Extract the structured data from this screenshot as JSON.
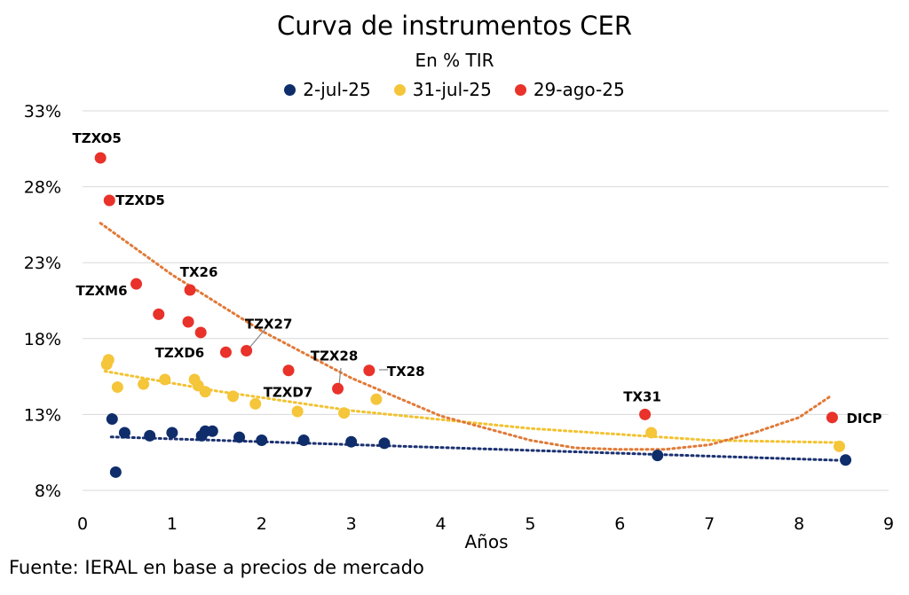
{
  "chart_data": {
    "type": "scatter",
    "title": "Curva de instrumentos CER",
    "subtitle": "En % TIR",
    "xlabel": "Años",
    "ylabel": "",
    "xlim": [
      0,
      9
    ],
    "ylim": [
      8,
      33
    ],
    "x_ticks": [
      "0",
      "1",
      "2",
      "3",
      "4",
      "5",
      "6",
      "7",
      "8",
      "9"
    ],
    "y_ticks": [
      "8%",
      "13%",
      "18%",
      "23%",
      "28%",
      "33%"
    ],
    "grid": "horizontal",
    "legend_position": "top-center",
    "series": [
      {
        "name": "2-jul-25",
        "color": "#0f2d6b",
        "trend_color": "#1b3170",
        "points": [
          [
            0.33,
            12.7
          ],
          [
            0.37,
            9.2
          ],
          [
            0.47,
            11.8
          ],
          [
            0.75,
            11.6
          ],
          [
            1.0,
            11.8
          ],
          [
            1.33,
            11.6
          ],
          [
            1.37,
            11.9
          ],
          [
            1.45,
            11.9
          ],
          [
            1.75,
            11.5
          ],
          [
            2.0,
            11.3
          ],
          [
            2.47,
            11.3
          ],
          [
            3.0,
            11.2
          ],
          [
            3.37,
            11.1
          ],
          [
            6.42,
            10.3
          ],
          [
            8.52,
            10.0
          ]
        ],
        "trend": [
          [
            0.32,
            11.52
          ],
          [
            8.45,
            9.98
          ]
        ]
      },
      {
        "name": "31-jul-25",
        "color": "#f5c53a",
        "trend_color": "#f2c230",
        "points": [
          [
            0.27,
            16.3
          ],
          [
            0.29,
            16.6
          ],
          [
            0.39,
            14.8
          ],
          [
            0.68,
            15.0
          ],
          [
            0.92,
            15.3
          ],
          [
            1.25,
            15.3
          ],
          [
            1.29,
            14.9
          ],
          [
            1.37,
            14.5
          ],
          [
            1.68,
            14.2
          ],
          [
            1.93,
            13.7
          ],
          [
            2.4,
            13.2
          ],
          [
            2.92,
            13.1
          ],
          [
            3.28,
            14.0
          ],
          [
            6.35,
            11.8
          ],
          [
            8.45,
            10.9
          ]
        ],
        "trend": [
          [
            0.25,
            15.85
          ],
          [
            1.5,
            14.54
          ],
          [
            3.0,
            13.25
          ],
          [
            5.0,
            12.08
          ],
          [
            7.0,
            11.3
          ],
          [
            8.45,
            11.15
          ]
        ]
      },
      {
        "name": "29-ago-25",
        "color": "#e8322a",
        "trend_color": "#e07a38",
        "points": [
          [
            0.2,
            29.9
          ],
          [
            0.3,
            27.1
          ],
          [
            0.6,
            21.6
          ],
          [
            0.85,
            19.6
          ],
          [
            1.18,
            19.1
          ],
          [
            1.2,
            21.2
          ],
          [
            1.32,
            18.4
          ],
          [
            1.6,
            17.1
          ],
          [
            1.83,
            17.2
          ],
          [
            2.3,
            15.9
          ],
          [
            2.85,
            14.7
          ],
          [
            3.2,
            15.9
          ],
          [
            6.28,
            13.0
          ],
          [
            8.37,
            12.8
          ]
        ],
        "trend": [
          [
            0.2,
            25.6
          ],
          [
            1.0,
            22.2
          ],
          [
            2.0,
            18.5
          ],
          [
            3.0,
            15.4
          ],
          [
            4.0,
            12.9
          ],
          [
            5.0,
            11.3
          ],
          [
            5.5,
            10.8
          ],
          [
            6.0,
            10.7
          ],
          [
            6.5,
            10.7
          ],
          [
            7.0,
            11.0
          ],
          [
            7.5,
            11.8
          ],
          [
            8.0,
            12.8
          ],
          [
            8.35,
            14.2
          ]
        ]
      }
    ],
    "point_labels": [
      {
        "text": "TZXO5",
        "x": 0.2,
        "y": 29.9
      },
      {
        "text": "TZXD5",
        "x": 0.3,
        "y": 27.1
      },
      {
        "text": "TZXM6",
        "x": 0.6,
        "y": 21.6
      },
      {
        "text": "TX26",
        "x": 1.2,
        "y": 21.2
      },
      {
        "text": "TZX27",
        "x": 1.83,
        "y": 17.2
      },
      {
        "text": "TZXD6",
        "x": 1.6,
        "y": 17.1
      },
      {
        "text": "TZXD7",
        "x": 1.93,
        "y": 13.7
      },
      {
        "text": "TZX28",
        "x": 2.85,
        "y": 14.7
      },
      {
        "text": "TX28",
        "x": 3.2,
        "y": 15.9
      },
      {
        "text": "TX31",
        "x": 6.28,
        "y": 13.0
      },
      {
        "text": "DICP",
        "x": 8.37,
        "y": 12.8
      }
    ]
  },
  "source_note": "Fuente: IERAL en base a precios de mercado"
}
